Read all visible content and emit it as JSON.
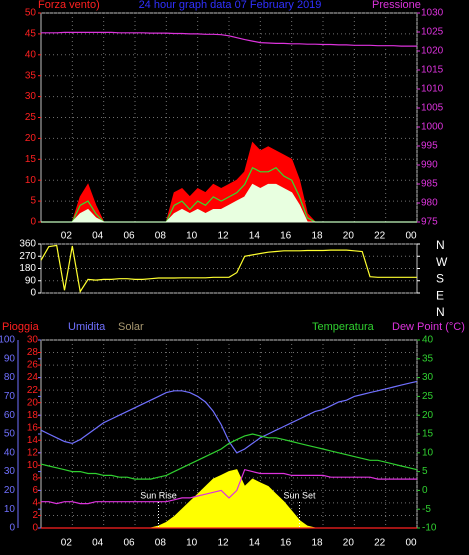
{
  "chart_data": [
    {
      "type": "line",
      "title": "24 hour graph data  07 February 2019",
      "y_label": "Forza vento)",
      "y2_label": "Pressione",
      "x": [
        0,
        0.5,
        1,
        1.5,
        2,
        2.5,
        3,
        3.5,
        4,
        4.5,
        5,
        5.5,
        6,
        6.5,
        7,
        7.5,
        8,
        8.5,
        9,
        9.5,
        10,
        10.5,
        11,
        11.5,
        12,
        12.5,
        13,
        13.5,
        14,
        14.5,
        15,
        15.5,
        16,
        16.5,
        17,
        17.5,
        18,
        18.5,
        19,
        19.5,
        20,
        20.5,
        21,
        21.5,
        22,
        22.5,
        23,
        23.5,
        24
      ],
      "xlim": [
        0,
        24
      ],
      "xticks": [
        {
          "value": 2,
          "label": "02"
        },
        {
          "value": 4,
          "label": "04"
        },
        {
          "value": 6,
          "label": "06"
        },
        {
          "value": 8,
          "label": "08"
        },
        10,
        12,
        14,
        16,
        18,
        20,
        22,
        {
          "value": 24,
          "label": "00"
        }
      ],
      "ylim": [
        0,
        50
      ],
      "yticks": [
        0,
        5,
        10,
        15,
        20,
        25,
        30,
        35,
        40,
        45,
        50
      ],
      "y2lim": [
        975,
        1030
      ],
      "y2ticks": [
        975,
        980,
        985,
        990,
        995,
        1000,
        1005,
        1010,
        1015,
        1020,
        1025,
        1030
      ],
      "axis_colors": {
        "y": "#ff2020",
        "y2": "#dd33dd"
      },
      "grid": true,
      "series": [
        {
          "color": "#ff0000",
          "style": "area",
          "values": [
            0,
            0,
            0,
            0,
            0,
            6,
            9,
            4,
            0,
            0,
            0,
            0,
            0,
            0,
            0,
            0,
            0,
            7,
            8,
            6,
            8,
            7,
            9,
            8,
            9,
            10,
            12,
            19,
            17,
            18,
            17,
            16,
            15,
            10,
            2,
            0,
            0,
            0,
            0,
            0,
            0,
            0,
            0,
            0,
            0,
            0,
            0,
            0,
            0
          ]
        },
        {
          "color": "#30e030",
          "style": "line",
          "values": [
            0,
            0,
            0,
            0,
            0,
            4,
            5,
            2,
            0,
            0,
            0,
            0,
            0,
            0,
            0,
            0,
            0,
            4,
            5,
            3,
            5,
            4,
            6,
            5,
            6,
            7,
            9,
            13,
            12,
            12,
            13,
            11,
            10,
            6,
            1,
            0,
            0,
            0,
            0,
            0,
            0,
            0,
            0,
            0,
            0,
            0,
            0,
            0,
            0
          ]
        },
        {
          "color": "#e8ffe0",
          "style": "area",
          "values": [
            0,
            0,
            0,
            0,
            0,
            2,
            3,
            1,
            0,
            0,
            0,
            0,
            0,
            0,
            0,
            0,
            0,
            2,
            3,
            2,
            3,
            2,
            3,
            3,
            4,
            5,
            6,
            9,
            8,
            9,
            9,
            8,
            7,
            4,
            0,
            0,
            0,
            0,
            0,
            0,
            0,
            0,
            0,
            0,
            0,
            0,
            0,
            0,
            0
          ]
        },
        {
          "color": "#dd33dd",
          "style": "line",
          "axis": "y2",
          "values": [
            1024.8,
            1024.8,
            1024.8,
            1024.9,
            1024.9,
            1024.9,
            1024.9,
            1024.9,
            1024.9,
            1024.9,
            1024.8,
            1024.8,
            1024.8,
            1024.8,
            1024.7,
            1024.7,
            1024.7,
            1024.6,
            1024.6,
            1024.5,
            1024.5,
            1024.4,
            1024.4,
            1024.3,
            1024.0,
            1023.5,
            1023.0,
            1022.6,
            1022.2,
            1022.1,
            1022.0,
            1022.0,
            1021.9,
            1021.9,
            1021.8,
            1021.8,
            1021.7,
            1021.7,
            1021.6,
            1021.6,
            1021.5,
            1021.5,
            1021.5,
            1021.4,
            1021.4,
            1021.4,
            1021.3,
            1021.3,
            1021.3
          ]
        }
      ]
    },
    {
      "type": "line",
      "x": [
        0,
        0.5,
        1,
        1.5,
        2,
        2.5,
        3,
        3.5,
        4,
        4.5,
        5,
        5.5,
        6,
        6.5,
        7,
        7.5,
        8,
        8.5,
        9,
        9.5,
        10,
        10.5,
        11,
        11.5,
        12,
        12.5,
        13,
        13.5,
        14,
        14.5,
        15,
        15.5,
        16,
        16.5,
        17,
        17.5,
        18,
        18.5,
        19,
        19.5,
        20,
        20.5,
        21,
        21.5,
        22,
        22.5,
        23,
        23.5,
        24
      ],
      "xlim": [
        0,
        24
      ],
      "ylim": [
        0,
        360
      ],
      "yticks": [
        0,
        90,
        180,
        270,
        360
      ],
      "y2lim": [
        0,
        360
      ],
      "y2ticks": [
        {
          "value": 360,
          "label": "N"
        },
        {
          "value": 270,
          "label": "W"
        },
        {
          "value": 180,
          "label": "S"
        },
        {
          "value": 90,
          "label": "E"
        },
        {
          "value": 0,
          "label": "N"
        }
      ],
      "axis_colors": {
        "y": "#ffffff",
        "y2": "#ffffff"
      },
      "grid": true,
      "series": [
        {
          "color": "#ffff30",
          "style": "line",
          "values": [
            240,
            340,
            350,
            20,
            345,
            10,
            100,
            95,
            100,
            100,
            105,
            105,
            100,
            100,
            105,
            110,
            110,
            110,
            112,
            112,
            112,
            112,
            115,
            115,
            115,
            150,
            270,
            280,
            290,
            300,
            305,
            310,
            310,
            310,
            312,
            312,
            312,
            315,
            315,
            315,
            310,
            305,
            120,
            115,
            115,
            115,
            115,
            115,
            115
          ]
        }
      ]
    },
    {
      "type": "line",
      "x": [
        0,
        0.5,
        1,
        1.5,
        2,
        2.5,
        3,
        3.5,
        4,
        4.5,
        5,
        5.5,
        6,
        6.5,
        7,
        7.5,
        8,
        8.5,
        9,
        9.5,
        10,
        10.5,
        11,
        11.5,
        12,
        12.5,
        13,
        13.5,
        14,
        14.5,
        15,
        15.5,
        16,
        16.5,
        17,
        17.5,
        18,
        18.5,
        19,
        19.5,
        20,
        20.5,
        21,
        21.5,
        22,
        22.5,
        23,
        23.5,
        24
      ],
      "xlim": [
        0,
        24
      ],
      "xticks": [
        {
          "value": 2,
          "label": "02"
        },
        {
          "value": 4,
          "label": "04"
        },
        {
          "value": 6,
          "label": "06"
        },
        {
          "value": 8,
          "label": "08"
        },
        10,
        12,
        14,
        16,
        18,
        20,
        22,
        {
          "value": 24,
          "label": "00"
        }
      ],
      "ylim": [
        0,
        30
      ],
      "yticks": [
        0,
        2,
        4,
        6,
        8,
        10,
        12,
        14,
        16,
        18,
        20,
        22,
        24,
        26,
        28,
        30
      ],
      "y3lim": [
        0,
        100
      ],
      "y3ticks": [
        0,
        10,
        20,
        30,
        40,
        50,
        60,
        70,
        80,
        90,
        100
      ],
      "y2lim": [
        -10,
        40
      ],
      "y2ticks": [
        -10,
        -5,
        0,
        5,
        10,
        15,
        20,
        25,
        30,
        35,
        40
      ],
      "axis_colors": {
        "y": "#ff2020",
        "y3": "#7070ff",
        "y2": "#30d030"
      },
      "grid": true,
      "annotations": [
        {
          "text": "Sun Rise",
          "x": 7.5
        },
        {
          "text": "Sun Set",
          "x": 16.5
        }
      ],
      "series": [
        {
          "name": "Solar",
          "color": "#ffff00",
          "label_color": "#a89870",
          "style": "area",
          "axis": "y3",
          "values": [
            0,
            0,
            0,
            0,
            0,
            0,
            0,
            0,
            0,
            0,
            0,
            0,
            0,
            0,
            0,
            1,
            3,
            6,
            10,
            14,
            18,
            22,
            26,
            28,
            30,
            31,
            22,
            26,
            24,
            22,
            18,
            14,
            9,
            4,
            1,
            0,
            0,
            0,
            0,
            0,
            0,
            0,
            0,
            0,
            0,
            0,
            0,
            0,
            0
          ]
        },
        {
          "name": "Pioggia",
          "color": "#ff2020",
          "style": "line",
          "values": [
            0,
            0,
            0,
            0,
            0,
            0,
            0,
            0,
            0,
            0,
            0,
            0,
            0,
            0,
            0,
            0,
            0,
            0,
            0,
            0,
            0,
            0,
            0,
            0,
            0,
            0,
            0,
            0,
            0,
            0,
            0,
            0,
            0,
            0,
            0,
            0,
            0,
            0,
            0,
            0,
            0,
            0,
            0,
            0,
            0,
            0,
            0,
            0,
            0
          ]
        },
        {
          "name": "Umidita",
          "color": "#7070ff",
          "style": "line",
          "axis": "y3",
          "values": [
            52,
            50,
            48,
            46,
            45,
            47,
            50,
            53,
            56,
            58,
            60,
            62,
            64,
            66,
            68,
            70,
            72,
            73,
            73,
            72,
            70,
            67,
            62,
            55,
            46,
            40,
            42,
            45,
            48,
            50,
            52,
            54,
            56,
            58,
            60,
            62,
            63,
            65,
            67,
            68,
            70,
            71,
            72,
            73,
            74,
            75,
            76,
            77,
            78
          ]
        },
        {
          "name": "Temperatura",
          "color": "#30d030",
          "style": "line",
          "axis": "y2",
          "values": [
            7,
            6.5,
            6,
            5.5,
            5,
            5,
            4.5,
            4.5,
            4,
            4,
            3.5,
            3.5,
            3,
            3,
            3,
            3.5,
            4,
            5,
            6,
            7,
            8,
            9,
            10,
            11,
            12.5,
            13.5,
            14.5,
            15,
            14.5,
            14,
            14,
            13.5,
            13,
            12.5,
            12,
            11.5,
            11,
            10.5,
            10,
            9.5,
            9,
            8.5,
            8,
            8,
            7.5,
            7,
            6.5,
            6,
            5.5
          ]
        },
        {
          "name": "Dew Point (°C)",
          "color": "#dd33dd",
          "style": "line",
          "axis": "y2",
          "values": [
            -3,
            -3,
            -3.5,
            -3,
            -3,
            -3.5,
            -3.5,
            -3,
            -3,
            -3,
            -3,
            -3,
            -3,
            -3,
            -3,
            -3,
            -3,
            -2.5,
            -2,
            -2,
            -1.5,
            -1,
            -0.5,
            0,
            -2,
            0,
            5.5,
            5,
            4.5,
            4.5,
            4.5,
            4.5,
            4,
            4,
            4,
            4,
            4,
            3.5,
            3.5,
            3.5,
            3.5,
            3.5,
            3.5,
            3,
            3,
            3,
            3,
            3,
            3
          ]
        }
      ]
    }
  ]
}
